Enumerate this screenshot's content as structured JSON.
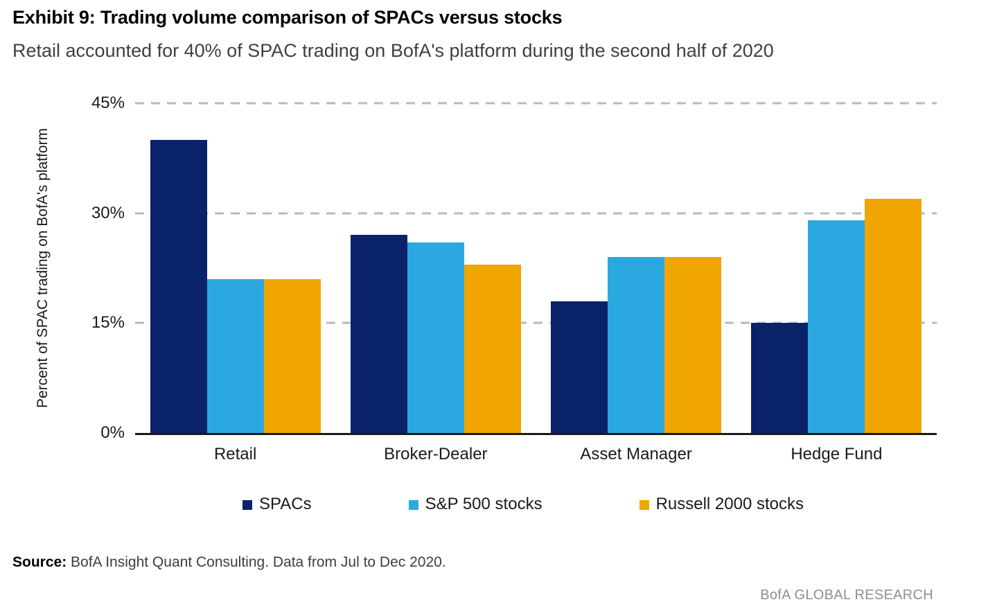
{
  "header": {
    "title": "Exhibit 9: Trading volume comparison of SPACs versus stocks",
    "subtitle": "Retail accounted for 40% of SPAC trading on BofA's platform during the second half of 2020"
  },
  "chart_data": {
    "type": "bar",
    "categories": [
      "Retail",
      "Broker-Dealer",
      "Asset Manager",
      "Hedge Fund"
    ],
    "series": [
      {
        "name": "SPACs",
        "color": "#0A2269",
        "values": [
          40,
          27,
          18,
          15
        ]
      },
      {
        "name": "S&P 500 stocks",
        "color": "#2BA8E0",
        "values": [
          21,
          26,
          24,
          29
        ]
      },
      {
        "name": "Russell 2000 stocks",
        "color": "#F0A500",
        "values": [
          21,
          23,
          24,
          32
        ]
      }
    ],
    "title": "Exhibit 9: Trading volume comparison of SPACs versus stocks",
    "xlabel": "",
    "ylabel": "Percent of SPAC trading on BofA's platform",
    "ylim": [
      0,
      45
    ],
    "yticks": [
      0,
      15,
      30,
      45
    ],
    "ytick_labels": [
      "0%",
      "15%",
      "30%",
      "45%"
    ],
    "grid": "horizontal dashed gridlines at 15%, 30%, 45%",
    "legend_position": "bottom"
  },
  "footer": {
    "source_label": "Source:",
    "source_text": " BofA Insight Quant Consulting. Data from Jul to Dec 2020.",
    "branding": "BofA GLOBAL RESEARCH"
  }
}
